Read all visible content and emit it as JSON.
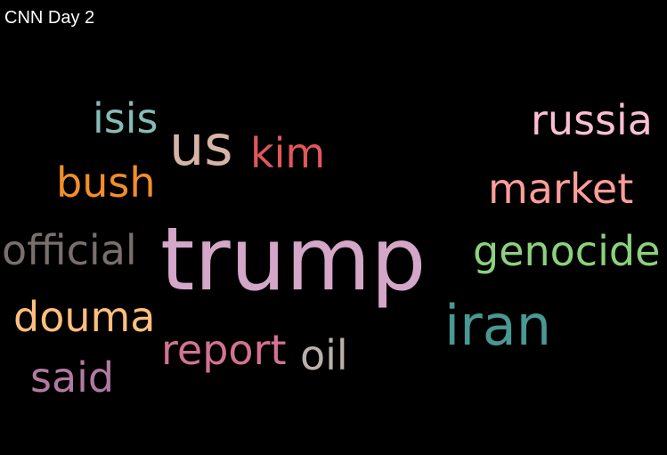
{
  "title": "CNN Day 2",
  "words": [
    {
      "text": "trump",
      "color": "#d4a6c8"
    },
    {
      "text": "us",
      "color": "#d7b5a6"
    },
    {
      "text": "iran",
      "color": "#499894"
    },
    {
      "text": "russia",
      "color": "#fabfd2"
    },
    {
      "text": "genocide",
      "color": "#8cd17d"
    },
    {
      "text": "official",
      "color": "#79706e"
    },
    {
      "text": "market",
      "color": "#ff9d9a"
    },
    {
      "text": "douma",
      "color": "#ffbe7d"
    },
    {
      "text": "bush",
      "color": "#f28e2b"
    },
    {
      "text": "kim",
      "color": "#e15759"
    },
    {
      "text": "isis",
      "color": "#86bcb6"
    },
    {
      "text": "report",
      "color": "#d37295"
    },
    {
      "text": "said",
      "color": "#b07aa1"
    },
    {
      "text": "oil",
      "color": "#bab0ac"
    }
  ]
}
